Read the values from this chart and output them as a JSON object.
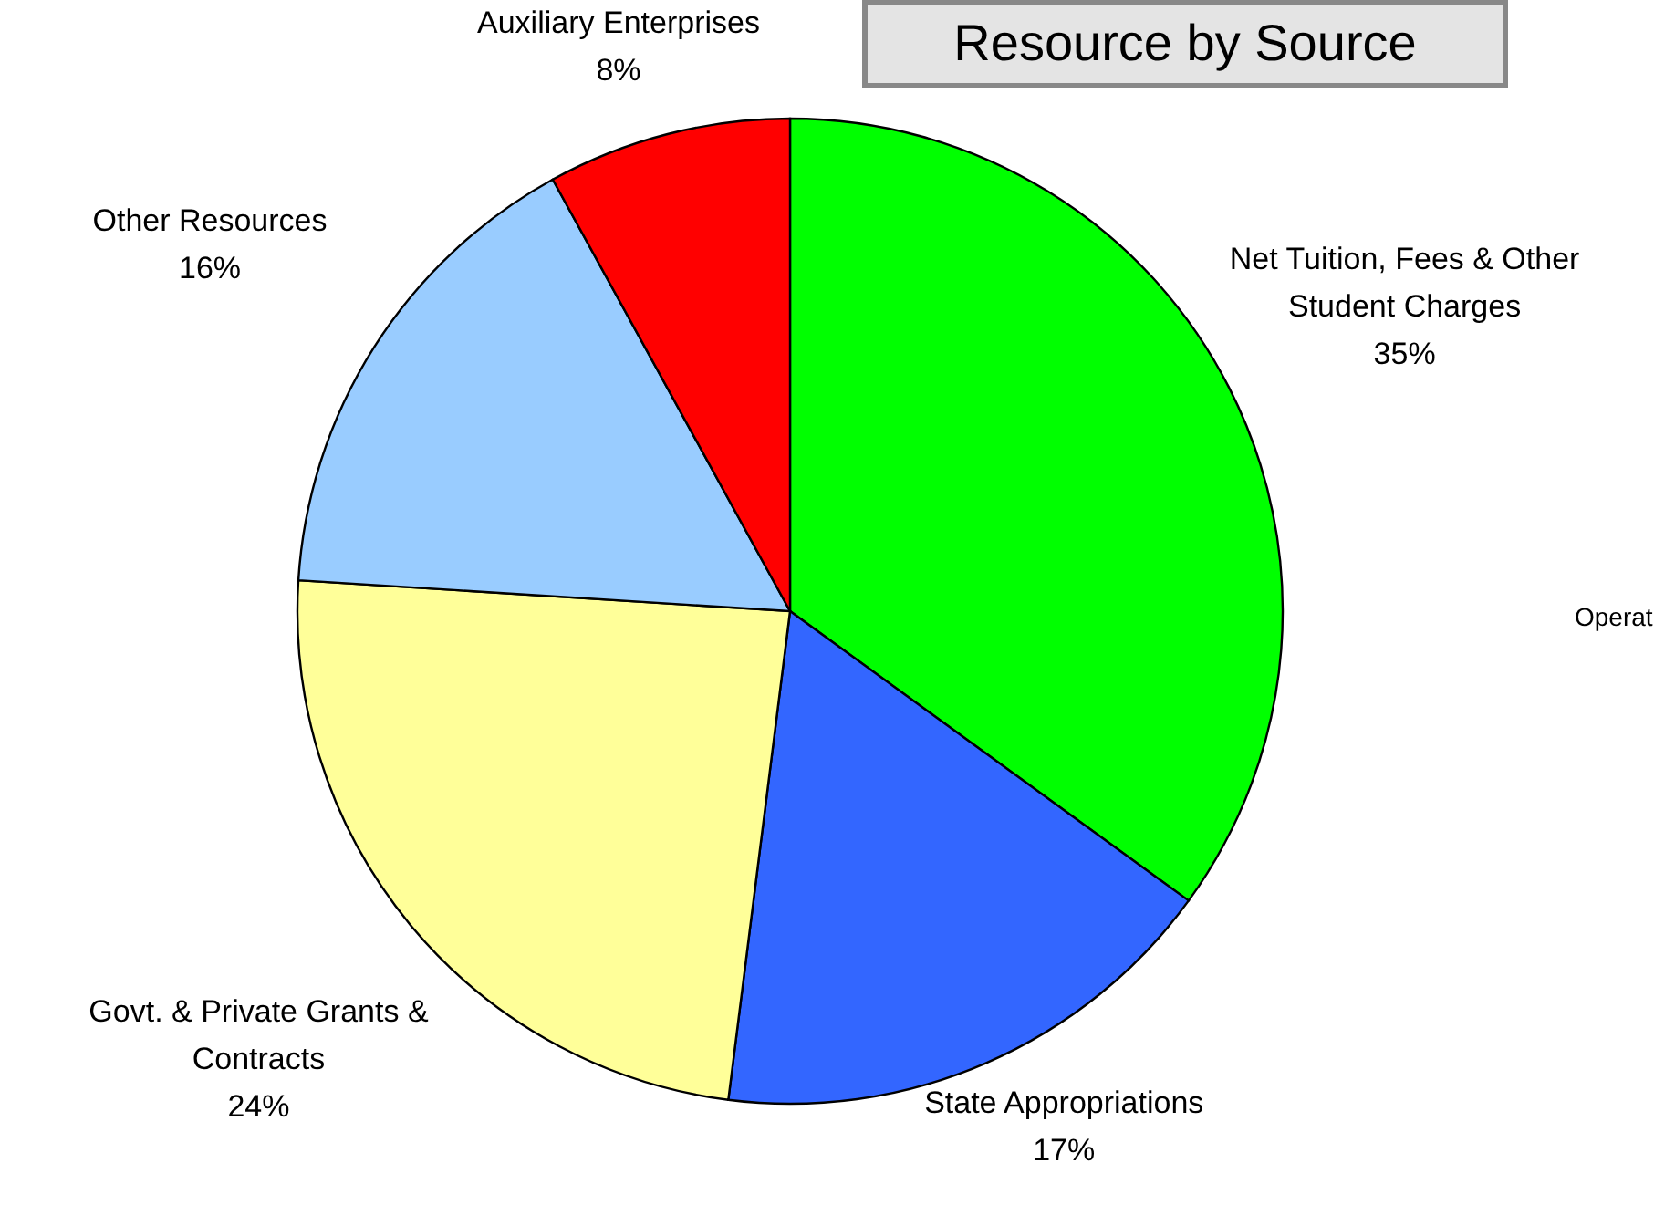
{
  "chart_data": {
    "type": "pie",
    "title": "Resource by Source",
    "categories": [
      "Net Tuition, Fees & Other Student Charges",
      "State Appropriations",
      "Govt. & Private Grants & Contracts",
      "Other Resources",
      "Auxiliary Enterprises"
    ],
    "values": [
      35,
      17,
      24,
      16,
      8
    ],
    "value_labels": [
      "35%",
      "17%",
      "24%",
      "16%",
      "8%"
    ],
    "colors": [
      "#00ff00",
      "#3366ff",
      "#ffff99",
      "#99ccff",
      "#ff0000"
    ],
    "annotations": [
      "Operat"
    ]
  }
}
